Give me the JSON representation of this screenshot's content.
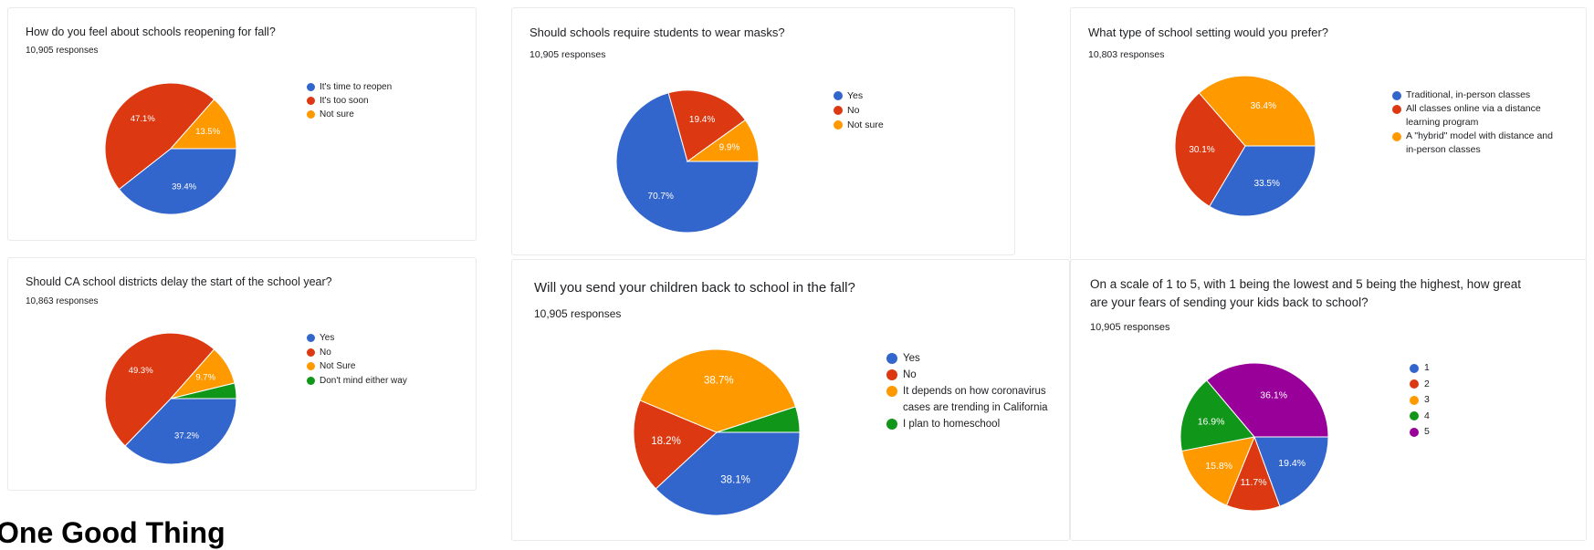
{
  "colors": {
    "blue": "#3366cc",
    "red": "#dc3912",
    "orange": "#ff9900",
    "green": "#109618",
    "purple": "#990099"
  },
  "footer_heading": "One Good Thing",
  "chart_data": [
    {
      "type": "pie",
      "title": "How do you feel about schools reopening for fall?",
      "subtitle": "10,905 responses",
      "legend_position": "right",
      "categories": [
        "It's time to reopen",
        "It's too soon",
        "Not sure"
      ],
      "values": [
        39.4,
        47.1,
        13.5
      ],
      "labels": [
        "39.4%",
        "47.1%",
        "13.5%"
      ],
      "colors": [
        "#3366cc",
        "#dc3912",
        "#ff9900"
      ]
    },
    {
      "type": "pie",
      "title": "Should schools require students to wear masks?",
      "subtitle": "10,905 responses",
      "legend_position": "right",
      "categories": [
        "Yes",
        "No",
        "Not sure"
      ],
      "values": [
        70.7,
        19.4,
        9.9
      ],
      "labels": [
        "70.7%",
        "19.4%",
        "9.9%"
      ],
      "colors": [
        "#3366cc",
        "#dc3912",
        "#ff9900"
      ]
    },
    {
      "type": "pie",
      "title": "What type of school setting would you prefer?",
      "subtitle": "10,803 responses",
      "legend_position": "right",
      "categories": [
        "Traditional, in-person classes",
        "All classes online via a distance learning program",
        "A \"hybrid\" model with distance and in-person classes"
      ],
      "values": [
        33.5,
        30.1,
        36.4
      ],
      "labels": [
        "33.5%",
        "30.1%",
        "36.4%"
      ],
      "colors": [
        "#3366cc",
        "#dc3912",
        "#ff9900"
      ]
    },
    {
      "type": "pie",
      "title": "Should CA school districts delay the start of the school year?",
      "subtitle": "10,863 responses",
      "legend_position": "right",
      "categories": [
        "Yes",
        "No",
        "Not Sure",
        "Don't mind either way"
      ],
      "values": [
        37.2,
        49.3,
        9.7,
        3.8
      ],
      "labels": [
        "37.2%",
        "49.3%",
        "9.7%",
        ""
      ],
      "colors": [
        "#3366cc",
        "#dc3912",
        "#ff9900",
        "#109618"
      ]
    },
    {
      "type": "pie",
      "title": "Will you send your children back to school in the fall?",
      "subtitle": "10,905 responses",
      "legend_position": "right",
      "categories": [
        "Yes",
        "No",
        "It depends on how coronavirus cases are trending in California",
        "I plan to homeschool"
      ],
      "values": [
        38.1,
        18.2,
        38.7,
        5.0
      ],
      "labels": [
        "38.1%",
        "18.2%",
        "38.7%",
        ""
      ],
      "colors": [
        "#3366cc",
        "#dc3912",
        "#ff9900",
        "#109618"
      ]
    },
    {
      "type": "pie",
      "title": "On a scale of 1 to 5, with 1 being the lowest and 5 being the highest, how great are your fears of sending your kids back to school?",
      "subtitle": "10,905 responses",
      "legend_position": "right",
      "categories": [
        "1",
        "2",
        "3",
        "4",
        "5"
      ],
      "values": [
        19.4,
        11.7,
        15.8,
        16.9,
        36.1
      ],
      "labels": [
        "19.4%",
        "11.7%",
        "15.8%",
        "16.9%",
        "36.1%"
      ],
      "colors": [
        "#3366cc",
        "#dc3912",
        "#ff9900",
        "#109618",
        "#990099"
      ]
    }
  ]
}
